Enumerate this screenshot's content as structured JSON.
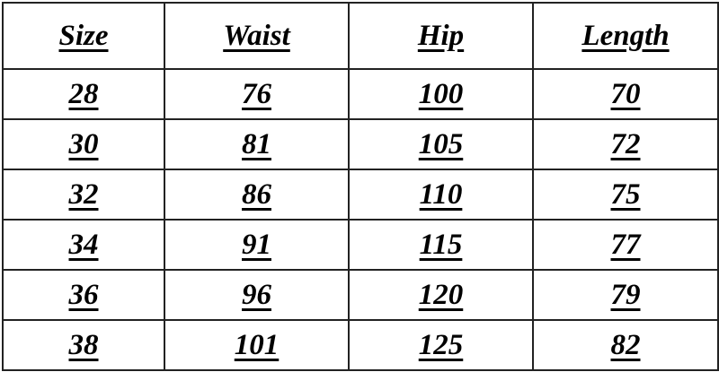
{
  "table": {
    "headers": [
      "Size",
      "Waist",
      "Hip",
      "Length"
    ],
    "rows": [
      [
        "28",
        "76",
        "100",
        "70"
      ],
      [
        "30",
        "81",
        "105",
        "72"
      ],
      [
        "32",
        "86",
        "110",
        "75"
      ],
      [
        "34",
        "91",
        "115",
        "77"
      ],
      [
        "36",
        "96",
        "120",
        "79"
      ],
      [
        "38",
        "101",
        "125",
        "82"
      ]
    ]
  }
}
